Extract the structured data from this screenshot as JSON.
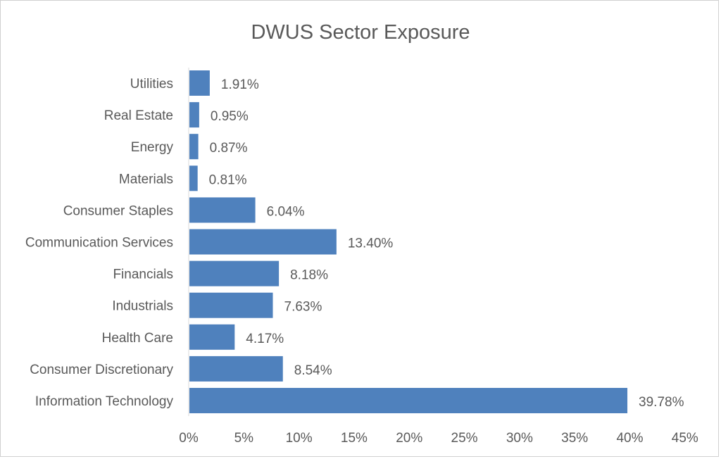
{
  "chart_data": {
    "type": "bar",
    "orientation": "horizontal",
    "title": "DWUS Sector Exposure",
    "xlabel": "",
    "ylabel": "",
    "categories": [
      "Utilities",
      "Real Estate",
      "Energy",
      "Materials",
      "Consumer Staples",
      "Communication Services",
      "Financials",
      "Industrials",
      "Health Care",
      "Consumer Discretionary",
      "Information Technology"
    ],
    "values": [
      1.91,
      0.95,
      0.87,
      0.81,
      6.04,
      13.4,
      8.18,
      7.63,
      4.17,
      8.54,
      39.78
    ],
    "data_labels": [
      "1.91%",
      "0.95%",
      "0.87%",
      "0.81%",
      "6.04%",
      "13.40%",
      "8.18%",
      "7.63%",
      "4.17%",
      "8.54%",
      "39.78%"
    ],
    "xlim": [
      0,
      45
    ],
    "x_ticks": [
      0,
      5,
      10,
      15,
      20,
      25,
      30,
      35,
      40,
      45
    ],
    "x_tick_labels": [
      "0%",
      "5%",
      "10%",
      "15%",
      "20%",
      "25%",
      "30%",
      "35%",
      "40%",
      "45%"
    ],
    "grid": false,
    "legend": "none",
    "bar_color": "#4f81bd"
  }
}
